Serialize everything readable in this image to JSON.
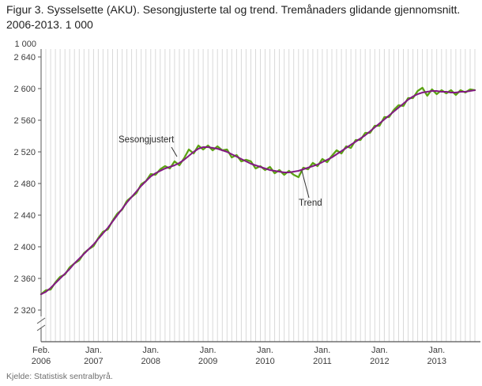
{
  "title": "Figur 3. Sysselsette (AKU).  Sesongjusterte tal og trend. Tremånaders glidande gjennomsnitt. 2006-2013. 1 000",
  "axis_unit_label": "1 000",
  "source": "Kjelde: Statistisk sentralbyrå.",
  "annotations": {
    "seasonal_label": "Sesongjustert",
    "trend_label": "Trend"
  },
  "colors": {
    "seasonal": "#5ca314",
    "trend": "#831a83",
    "grid": "#d9d9d9",
    "axis": "#555555",
    "tick_text": "#3c3c3c",
    "title_text": "#212121",
    "source_text": "#6e6e6e",
    "annotation_text": "#2b2b2b"
  },
  "chart_data": {
    "type": "line",
    "title": "Figur 3. Sysselsette (AKU). Sesongjusterte tal og trend. Tremånaders glidande gjennomsnitt. 2006-2013. 1 000",
    "xlabel": "",
    "ylabel": "1 000",
    "ylim": [
      2320,
      2640
    ],
    "grid": "vertical-monthly",
    "axis_break": true,
    "legend_position": "inline-labels",
    "y_ticks": [
      {
        "value": 2640,
        "label": "2 640"
      },
      {
        "value": 2600,
        "label": "2 600"
      },
      {
        "value": 2560,
        "label": "2 560"
      },
      {
        "value": 2520,
        "label": "2 520"
      },
      {
        "value": 2480,
        "label": "2 480"
      },
      {
        "value": 2440,
        "label": "2 440"
      },
      {
        "value": 2400,
        "label": "2 400"
      },
      {
        "value": 2360,
        "label": "2 360"
      },
      {
        "value": 2320,
        "label": "2 320"
      }
    ],
    "x_ticks": [
      {
        "index": 0,
        "line1": "Feb.",
        "line2": "2006"
      },
      {
        "index": 11,
        "line1": "Jan.",
        "line2": "2007"
      },
      {
        "index": 23,
        "line1": "Jan.",
        "line2": "2008"
      },
      {
        "index": 35,
        "line1": "Jan.",
        "line2": "2009"
      },
      {
        "index": 47,
        "line1": "Jan.",
        "line2": "2010"
      },
      {
        "index": 59,
        "line1": "Jan.",
        "line2": "2011"
      },
      {
        "index": 71,
        "line1": "Jan.",
        "line2": "2012"
      },
      {
        "index": 83,
        "line1": "Jan.",
        "line2": "2013"
      }
    ],
    "x": [
      "2006-02",
      "2006-03",
      "2006-04",
      "2006-05",
      "2006-06",
      "2006-07",
      "2006-08",
      "2006-09",
      "2006-10",
      "2006-11",
      "2006-12",
      "2007-01",
      "2007-02",
      "2007-03",
      "2007-04",
      "2007-05",
      "2007-06",
      "2007-07",
      "2007-08",
      "2007-09",
      "2007-10",
      "2007-11",
      "2007-12",
      "2008-01",
      "2008-02",
      "2008-03",
      "2008-04",
      "2008-05",
      "2008-06",
      "2008-07",
      "2008-08",
      "2008-09",
      "2008-10",
      "2008-11",
      "2008-12",
      "2009-01",
      "2009-02",
      "2009-03",
      "2009-04",
      "2009-05",
      "2009-06",
      "2009-07",
      "2009-08",
      "2009-09",
      "2009-10",
      "2009-11",
      "2009-12",
      "2010-01",
      "2010-02",
      "2010-03",
      "2010-04",
      "2010-05",
      "2010-06",
      "2010-07",
      "2010-08",
      "2010-09",
      "2010-10",
      "2010-11",
      "2010-12",
      "2011-01",
      "2011-02",
      "2011-03",
      "2011-04",
      "2011-05",
      "2011-06",
      "2011-07",
      "2011-08",
      "2011-09",
      "2011-10",
      "2011-11",
      "2011-12",
      "2012-01",
      "2012-02",
      "2012-03",
      "2012-04",
      "2012-05",
      "2012-06",
      "2012-07",
      "2012-08",
      "2012-09",
      "2012-10",
      "2012-11",
      "2012-12",
      "2013-01",
      "2013-02",
      "2013-03",
      "2013-04",
      "2013-05",
      "2013-06",
      "2013-07",
      "2013-08",
      "2013-09"
    ],
    "series": [
      {
        "name": "Sesongjustert",
        "color": "#5ca314",
        "values": [
          2340,
          2345,
          2346,
          2355,
          2362,
          2365,
          2374,
          2379,
          2383,
          2392,
          2397,
          2401,
          2411,
          2419,
          2422,
          2433,
          2442,
          2447,
          2458,
          2463,
          2468,
          2479,
          2483,
          2492,
          2491,
          2498,
          2502,
          2499,
          2508,
          2503,
          2512,
          2523,
          2518,
          2528,
          2523,
          2528,
          2522,
          2527,
          2522,
          2523,
          2513,
          2516,
          2508,
          2510,
          2508,
          2499,
          2502,
          2497,
          2501,
          2493,
          2497,
          2491,
          2496,
          2491,
          2488,
          2500,
          2498,
          2506,
          2502,
          2511,
          2507,
          2515,
          2522,
          2518,
          2527,
          2525,
          2535,
          2535,
          2544,
          2544,
          2553,
          2553,
          2564,
          2564,
          2573,
          2579,
          2578,
          2588,
          2588,
          2597,
          2601,
          2591,
          2599,
          2593,
          2598,
          2594,
          2598,
          2592,
          2598,
          2595,
          2599,
          2598
        ]
      },
      {
        "name": "Trend",
        "color": "#831a83",
        "values": [
          2340,
          2343,
          2348,
          2354,
          2360,
          2366,
          2372,
          2379,
          2385,
          2391,
          2397,
          2403,
          2410,
          2417,
          2424,
          2432,
          2440,
          2448,
          2456,
          2463,
          2470,
          2477,
          2483,
          2489,
          2493,
          2496,
          2499,
          2501,
          2503,
          2506,
          2510,
          2515,
          2520,
          2524,
          2526,
          2526,
          2525,
          2524,
          2522,
          2520,
          2517,
          2514,
          2511,
          2508,
          2505,
          2503,
          2501,
          2499,
          2497,
          2496,
          2495,
          2494,
          2494,
          2495,
          2496,
          2498,
          2500,
          2502,
          2504,
          2507,
          2510,
          2513,
          2517,
          2521,
          2525,
          2529,
          2533,
          2537,
          2541,
          2546,
          2551,
          2556,
          2561,
          2566,
          2571,
          2576,
          2581,
          2586,
          2590,
          2593,
          2595,
          2596,
          2597,
          2597,
          2596,
          2596,
          2595,
          2595,
          2596,
          2596,
          2597,
          2598
        ]
      }
    ]
  }
}
